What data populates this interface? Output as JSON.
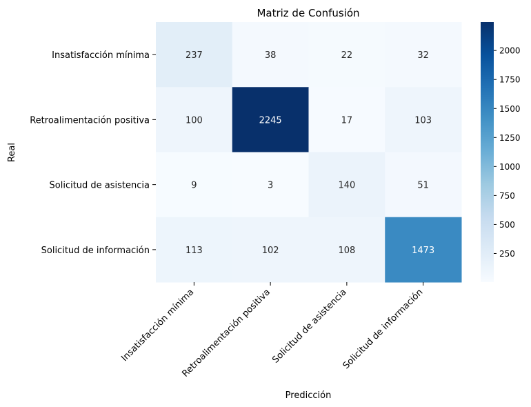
{
  "chart_data": {
    "type": "heatmap",
    "title": "Matriz de Confusión",
    "xlabel": "Predicción",
    "ylabel": "Real",
    "rows": [
      "Insatisfacción mínima",
      "Retroalimentación positiva",
      "Solicitud  de asistencia",
      "Solicitud de información"
    ],
    "columns": [
      "Insatisfacción mínima",
      "Retroalimentación positiva",
      "Solicitud  de asistencia",
      "Solicitud de información"
    ],
    "values": [
      [
        237,
        38,
        22,
        32
      ],
      [
        100,
        2245,
        17,
        103
      ],
      [
        9,
        3,
        140,
        51
      ],
      [
        113,
        102,
        108,
        1473
      ]
    ],
    "colormap": "Blues",
    "colorbar": {
      "ticks": [
        250,
        500,
        750,
        1000,
        1250,
        1500,
        1750,
        2000
      ],
      "range": [
        3,
        2245
      ]
    }
  }
}
